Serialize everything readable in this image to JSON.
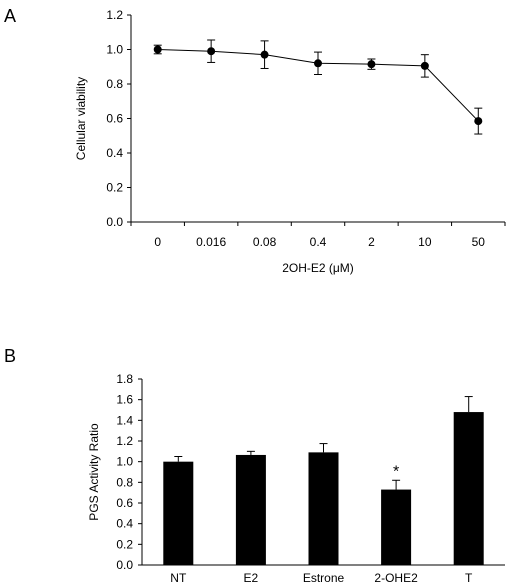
{
  "panels": [
    {
      "label": "A"
    },
    {
      "label": "B"
    }
  ],
  "chart_data": [
    {
      "type": "line",
      "panel": "A",
      "title": "",
      "xlabel": "2OH-E2 (μM)",
      "ylabel": "Cellular viability",
      "categories": [
        "0",
        "0.016",
        "0.08",
        "0.4",
        "2",
        "10",
        "50"
      ],
      "series": [
        {
          "values": [
            1.0,
            0.99,
            0.97,
            0.92,
            0.915,
            0.905,
            0.585
          ],
          "errors": [
            0.025,
            0.065,
            0.08,
            0.065,
            0.03,
            0.065,
            0.075
          ],
          "color": "#000000"
        }
      ],
      "ylim": [
        0,
        1.2
      ],
      "yticks": [
        0.0,
        0.2,
        0.4,
        0.6,
        0.8,
        1.0,
        1.2
      ],
      "ytick_labels": [
        "0.0",
        "0.2",
        "0.4",
        "0.6",
        "0.8",
        "1.0",
        "1.2"
      ],
      "grid": false,
      "legend": "none"
    },
    {
      "type": "bar",
      "panel": "B",
      "title": "",
      "xlabel": "",
      "ylabel": "PGS Activity Ratio",
      "categories": [
        "NT",
        "E2",
        "Estrone",
        "2-OHE2",
        "T"
      ],
      "series": [
        {
          "values": [
            1.0,
            1.065,
            1.09,
            0.73,
            1.48
          ],
          "errors": [
            0.05,
            0.035,
            0.085,
            0.09,
            0.15
          ],
          "color": "#000000"
        }
      ],
      "annotations": [
        {
          "category": "2-OHE2",
          "text": "*"
        }
      ],
      "ylim": [
        0,
        1.8
      ],
      "yticks": [
        0.0,
        0.2,
        0.4,
        0.6,
        0.8,
        1.0,
        1.2,
        1.4,
        1.6,
        1.8
      ],
      "ytick_labels": [
        "0.0",
        "0.2",
        "0.4",
        "0.6",
        "0.8",
        "1.0",
        "1.2",
        "1.4",
        "1.6",
        "1.8"
      ],
      "grid": false,
      "legend": "none"
    }
  ]
}
